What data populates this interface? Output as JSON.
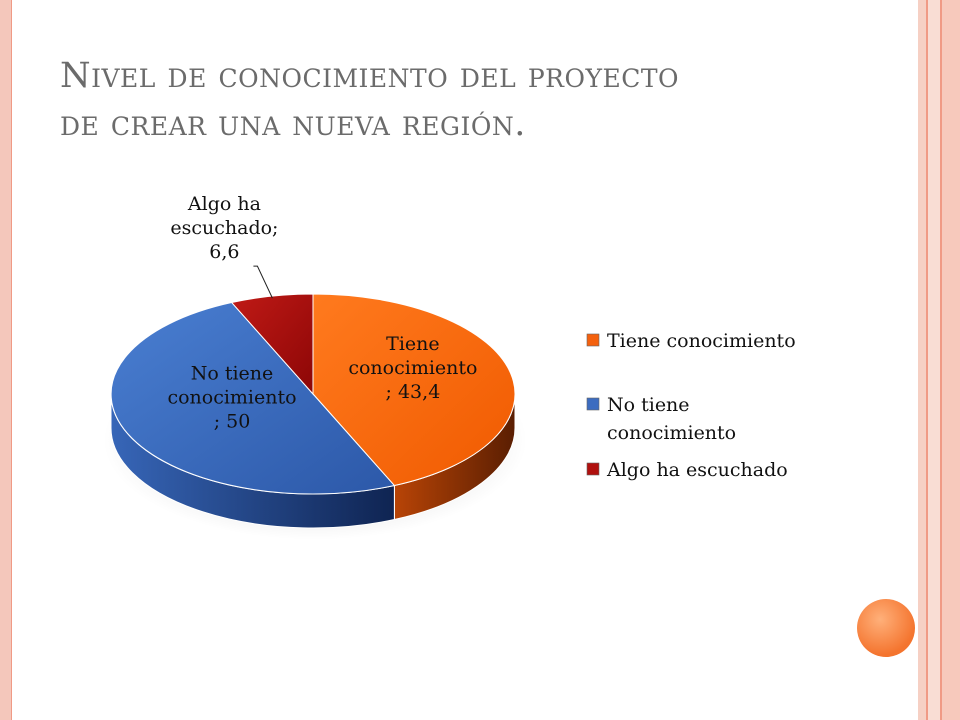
{
  "title": {
    "line1": "Nivel de conocimiento del proyecto",
    "line2": "de crear una nueva región."
  },
  "colors": {
    "tiene": "#f4610e",
    "no_tiene": "#3c6cc0",
    "algo": "#b0100e",
    "frame_accent": "#f4742e"
  },
  "chart_data": {
    "type": "pie",
    "categories": [
      "Tiene conocimiento",
      "No tiene conocimiento",
      "Algo ha escuchado"
    ],
    "values": [
      43.4,
      50,
      6.6
    ],
    "data_labels": [
      [
        "Tiene",
        "conocimiento",
        "; 43,4"
      ],
      [
        "No tiene",
        "conocimiento",
        "; 50"
      ],
      [
        "Algo ha",
        "escuchado;",
        "6,6"
      ]
    ],
    "legend": {
      "position": "right",
      "entries": [
        [
          "Tiene conocimiento"
        ],
        [
          "No tiene",
          "conocimiento"
        ],
        [
          "Algo ha escuchado"
        ]
      ]
    },
    "style": "3d"
  }
}
